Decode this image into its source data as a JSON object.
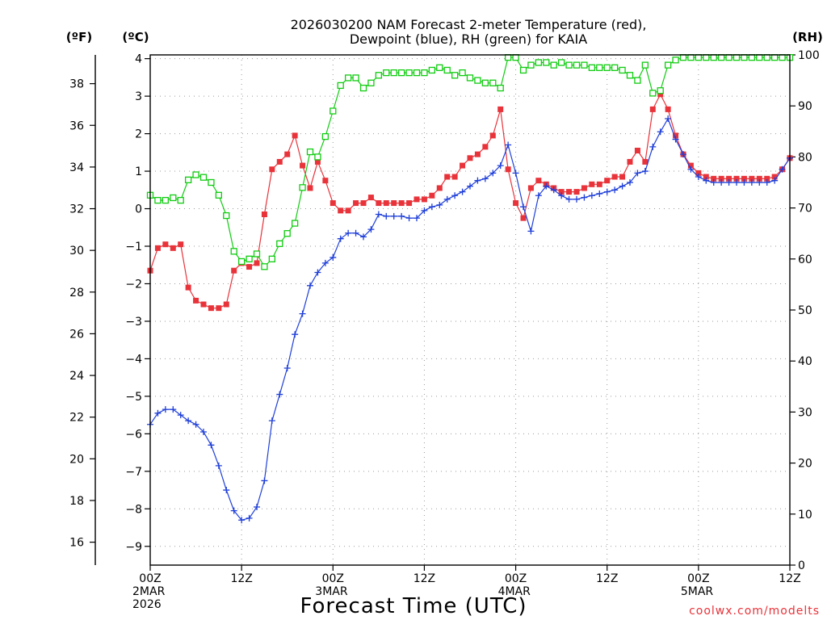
{
  "chart_data": {
    "type": "line",
    "title": "2026030200 NAM Forecast 2-meter Temperature (red),",
    "subtitle": "Dewpoint (blue), RH (green) for KAIA",
    "xlabel": "Forecast Time (UTC)",
    "credit": "coolwx.com/modelts",
    "units": {
      "fahrenheit": "(ºF)",
      "celsius": "(ºC)",
      "rh": "(RH)"
    },
    "x_range_hours": [
      0,
      84
    ],
    "y_left_celsius": {
      "min": -9.5,
      "max": 4.1,
      "ticks": [
        4,
        3,
        2,
        1,
        0,
        -1,
        -2,
        -3,
        -4,
        -5,
        -6,
        -7,
        -8,
        -9
      ],
      "labels": [
        "4",
        "3",
        "2",
        "1",
        "0",
        "−1",
        "−2",
        "−3",
        "−4",
        "−5",
        "−6",
        "−7",
        "−8",
        "−9"
      ]
    },
    "y_fahrenheit_ticks": [
      "38",
      "36",
      "34",
      "32",
      "30",
      "28",
      "26",
      "24",
      "22",
      "20",
      "18",
      "16"
    ],
    "y_fahrenheit_values": [
      38,
      36,
      34,
      32,
      30,
      28,
      26,
      24,
      22,
      20,
      18,
      16
    ],
    "y_right_rh": {
      "min": 0,
      "max": 100,
      "ticks": [
        0,
        10,
        20,
        30,
        40,
        50,
        60,
        70,
        80,
        90,
        100
      ],
      "labels": [
        "0",
        "10",
        "20",
        "30",
        "40",
        "50",
        "60",
        "70",
        "80",
        "90",
        "100"
      ]
    },
    "x_ticks": [
      {
        "hour": 0,
        "lines": [
          "00Z",
          "2MAR",
          "2026"
        ]
      },
      {
        "hour": 12,
        "lines": [
          "12Z"
        ]
      },
      {
        "hour": 24,
        "lines": [
          "00Z",
          "3MAR"
        ]
      },
      {
        "hour": 36,
        "lines": [
          "12Z"
        ]
      },
      {
        "hour": 48,
        "lines": [
          "00Z",
          "4MAR"
        ]
      },
      {
        "hour": 60,
        "lines": [
          "12Z"
        ]
      },
      {
        "hour": 72,
        "lines": [
          "00Z",
          "5MAR"
        ]
      },
      {
        "hour": 84,
        "lines": [
          "12Z"
        ]
      }
    ],
    "grid": true,
    "colors": {
      "temperature": "#e8333a",
      "dewpoint": "#1f3fd8",
      "rh": "#11cc11"
    },
    "series": [
      {
        "name": "Temperature",
        "unit": "C",
        "marker": "filled-square",
        "x": [
          0,
          1,
          2,
          3,
          4,
          5,
          6,
          7,
          8,
          9,
          10,
          11,
          12,
          13,
          14,
          15,
          16,
          17,
          18,
          19,
          20,
          21,
          22,
          23,
          24,
          25,
          26,
          27,
          28,
          29,
          30,
          31,
          32,
          33,
          34,
          35,
          36,
          37,
          38,
          39,
          40,
          41,
          42,
          43,
          44,
          45,
          46,
          47,
          48,
          49,
          50,
          51,
          52,
          53,
          54,
          55,
          56,
          57,
          58,
          59,
          60,
          61,
          62,
          63,
          64,
          65,
          66,
          67,
          68,
          69,
          70,
          71,
          72,
          73,
          74,
          75,
          76,
          77,
          78,
          79,
          80,
          81,
          82,
          83,
          84
        ],
        "y": [
          -1.65,
          -1.05,
          -0.95,
          -1.05,
          -0.95,
          -2.1,
          -2.45,
          -2.55,
          -2.65,
          -2.65,
          -2.55,
          -1.65,
          -1.45,
          -1.55,
          -1.45,
          -0.15,
          1.05,
          1.25,
          1.45,
          1.95,
          1.15,
          0.55,
          1.25,
          0.75,
          0.15,
          -0.05,
          -0.05,
          0.15,
          0.15,
          0.3,
          0.15,
          0.15,
          0.15,
          0.15,
          0.15,
          0.25,
          0.25,
          0.35,
          0.55,
          0.85,
          0.85,
          1.15,
          1.35,
          1.45,
          1.65,
          1.95,
          2.65,
          1.05,
          0.15,
          -0.25,
          0.55,
          0.75,
          0.65,
          0.55,
          0.45,
          0.45,
          0.45,
          0.55,
          0.65,
          0.65,
          0.75,
          0.85,
          0.85,
          1.25,
          1.55,
          1.25,
          2.65,
          3.05,
          2.65,
          1.95,
          1.45,
          1.15,
          0.95,
          0.85,
          0.8,
          0.8,
          0.8,
          0.8,
          0.8,
          0.8,
          0.8,
          0.8,
          0.85,
          1.05,
          1.35
        ]
      },
      {
        "name": "Dewpoint",
        "unit": "C",
        "marker": "plus",
        "x": [
          0,
          1,
          2,
          3,
          4,
          5,
          6,
          7,
          8,
          9,
          10,
          11,
          12,
          13,
          14,
          15,
          16,
          17,
          18,
          19,
          20,
          21,
          22,
          23,
          24,
          25,
          26,
          27,
          28,
          29,
          30,
          31,
          32,
          33,
          34,
          35,
          36,
          37,
          38,
          39,
          40,
          41,
          42,
          43,
          44,
          45,
          46,
          47,
          48,
          49,
          50,
          51,
          52,
          53,
          54,
          55,
          56,
          57,
          58,
          59,
          60,
          61,
          62,
          63,
          64,
          65,
          66,
          67,
          68,
          69,
          70,
          71,
          72,
          73,
          74,
          75,
          76,
          77,
          78,
          79,
          80,
          81,
          82,
          83,
          84
        ],
        "y": [
          -5.75,
          -5.45,
          -5.35,
          -5.35,
          -5.5,
          -5.65,
          -5.75,
          -5.95,
          -6.3,
          -6.85,
          -7.5,
          -8.05,
          -8.3,
          -8.25,
          -7.95,
          -7.25,
          -5.65,
          -4.95,
          -4.25,
          -3.35,
          -2.8,
          -2.05,
          -1.7,
          -1.45,
          -1.3,
          -0.8,
          -0.65,
          -0.65,
          -0.75,
          -0.55,
          -0.15,
          -0.2,
          -0.2,
          -0.2,
          -0.25,
          -0.25,
          -0.05,
          0.05,
          0.1,
          0.25,
          0.35,
          0.45,
          0.6,
          0.75,
          0.8,
          0.95,
          1.15,
          1.7,
          0.95,
          0.05,
          -0.6,
          0.35,
          0.6,
          0.5,
          0.35,
          0.25,
          0.25,
          0.3,
          0.35,
          0.4,
          0.45,
          0.5,
          0.6,
          0.7,
          0.95,
          1.0,
          1.65,
          2.05,
          2.4,
          1.85,
          1.45,
          1.05,
          0.85,
          0.75,
          0.7,
          0.7,
          0.7,
          0.7,
          0.7,
          0.7,
          0.7,
          0.7,
          0.75,
          1.05,
          1.35
        ]
      },
      {
        "name": "RH",
        "unit": "%",
        "axis": "right",
        "marker": "open-square",
        "x": [
          0,
          1,
          2,
          3,
          4,
          5,
          6,
          7,
          8,
          9,
          10,
          11,
          12,
          13,
          14,
          15,
          16,
          17,
          18,
          19,
          20,
          21,
          22,
          23,
          24,
          25,
          26,
          27,
          28,
          29,
          30,
          31,
          32,
          33,
          34,
          35,
          36,
          37,
          38,
          39,
          40,
          41,
          42,
          43,
          44,
          45,
          46,
          47,
          48,
          49,
          50,
          51,
          52,
          53,
          54,
          55,
          56,
          57,
          58,
          59,
          60,
          61,
          62,
          63,
          64,
          65,
          66,
          67,
          68,
          69,
          70,
          71,
          72,
          73,
          74,
          75,
          76,
          77,
          78,
          79,
          80,
          81,
          82,
          83,
          84
        ],
        "y": [
          72.5,
          71.5,
          71.5,
          72,
          71.5,
          75.5,
          76.5,
          76,
          75,
          72.5,
          68.5,
          61.5,
          59.5,
          60,
          61,
          58.5,
          60,
          63,
          65,
          67,
          74,
          81,
          80,
          84,
          89,
          94,
          95.5,
          95.5,
          93.5,
          94.5,
          96,
          96.5,
          96.5,
          96.5,
          96.5,
          96.5,
          96.5,
          97,
          97.5,
          97,
          96,
          96.5,
          95.5,
          95,
          94.5,
          94.5,
          93.5,
          99.5,
          99.5,
          97,
          98,
          98.5,
          98.5,
          98,
          98.5,
          98,
          98,
          98,
          97.5,
          97.5,
          97.5,
          97.5,
          97,
          96,
          95,
          98,
          92.5,
          93,
          98,
          99,
          99.5,
          99.5,
          99.5,
          99.5,
          99.5,
          99.5,
          99.5,
          99.5,
          99.5,
          99.5,
          99.5,
          99.5,
          99.5,
          99.5,
          99.5
        ]
      }
    ]
  }
}
